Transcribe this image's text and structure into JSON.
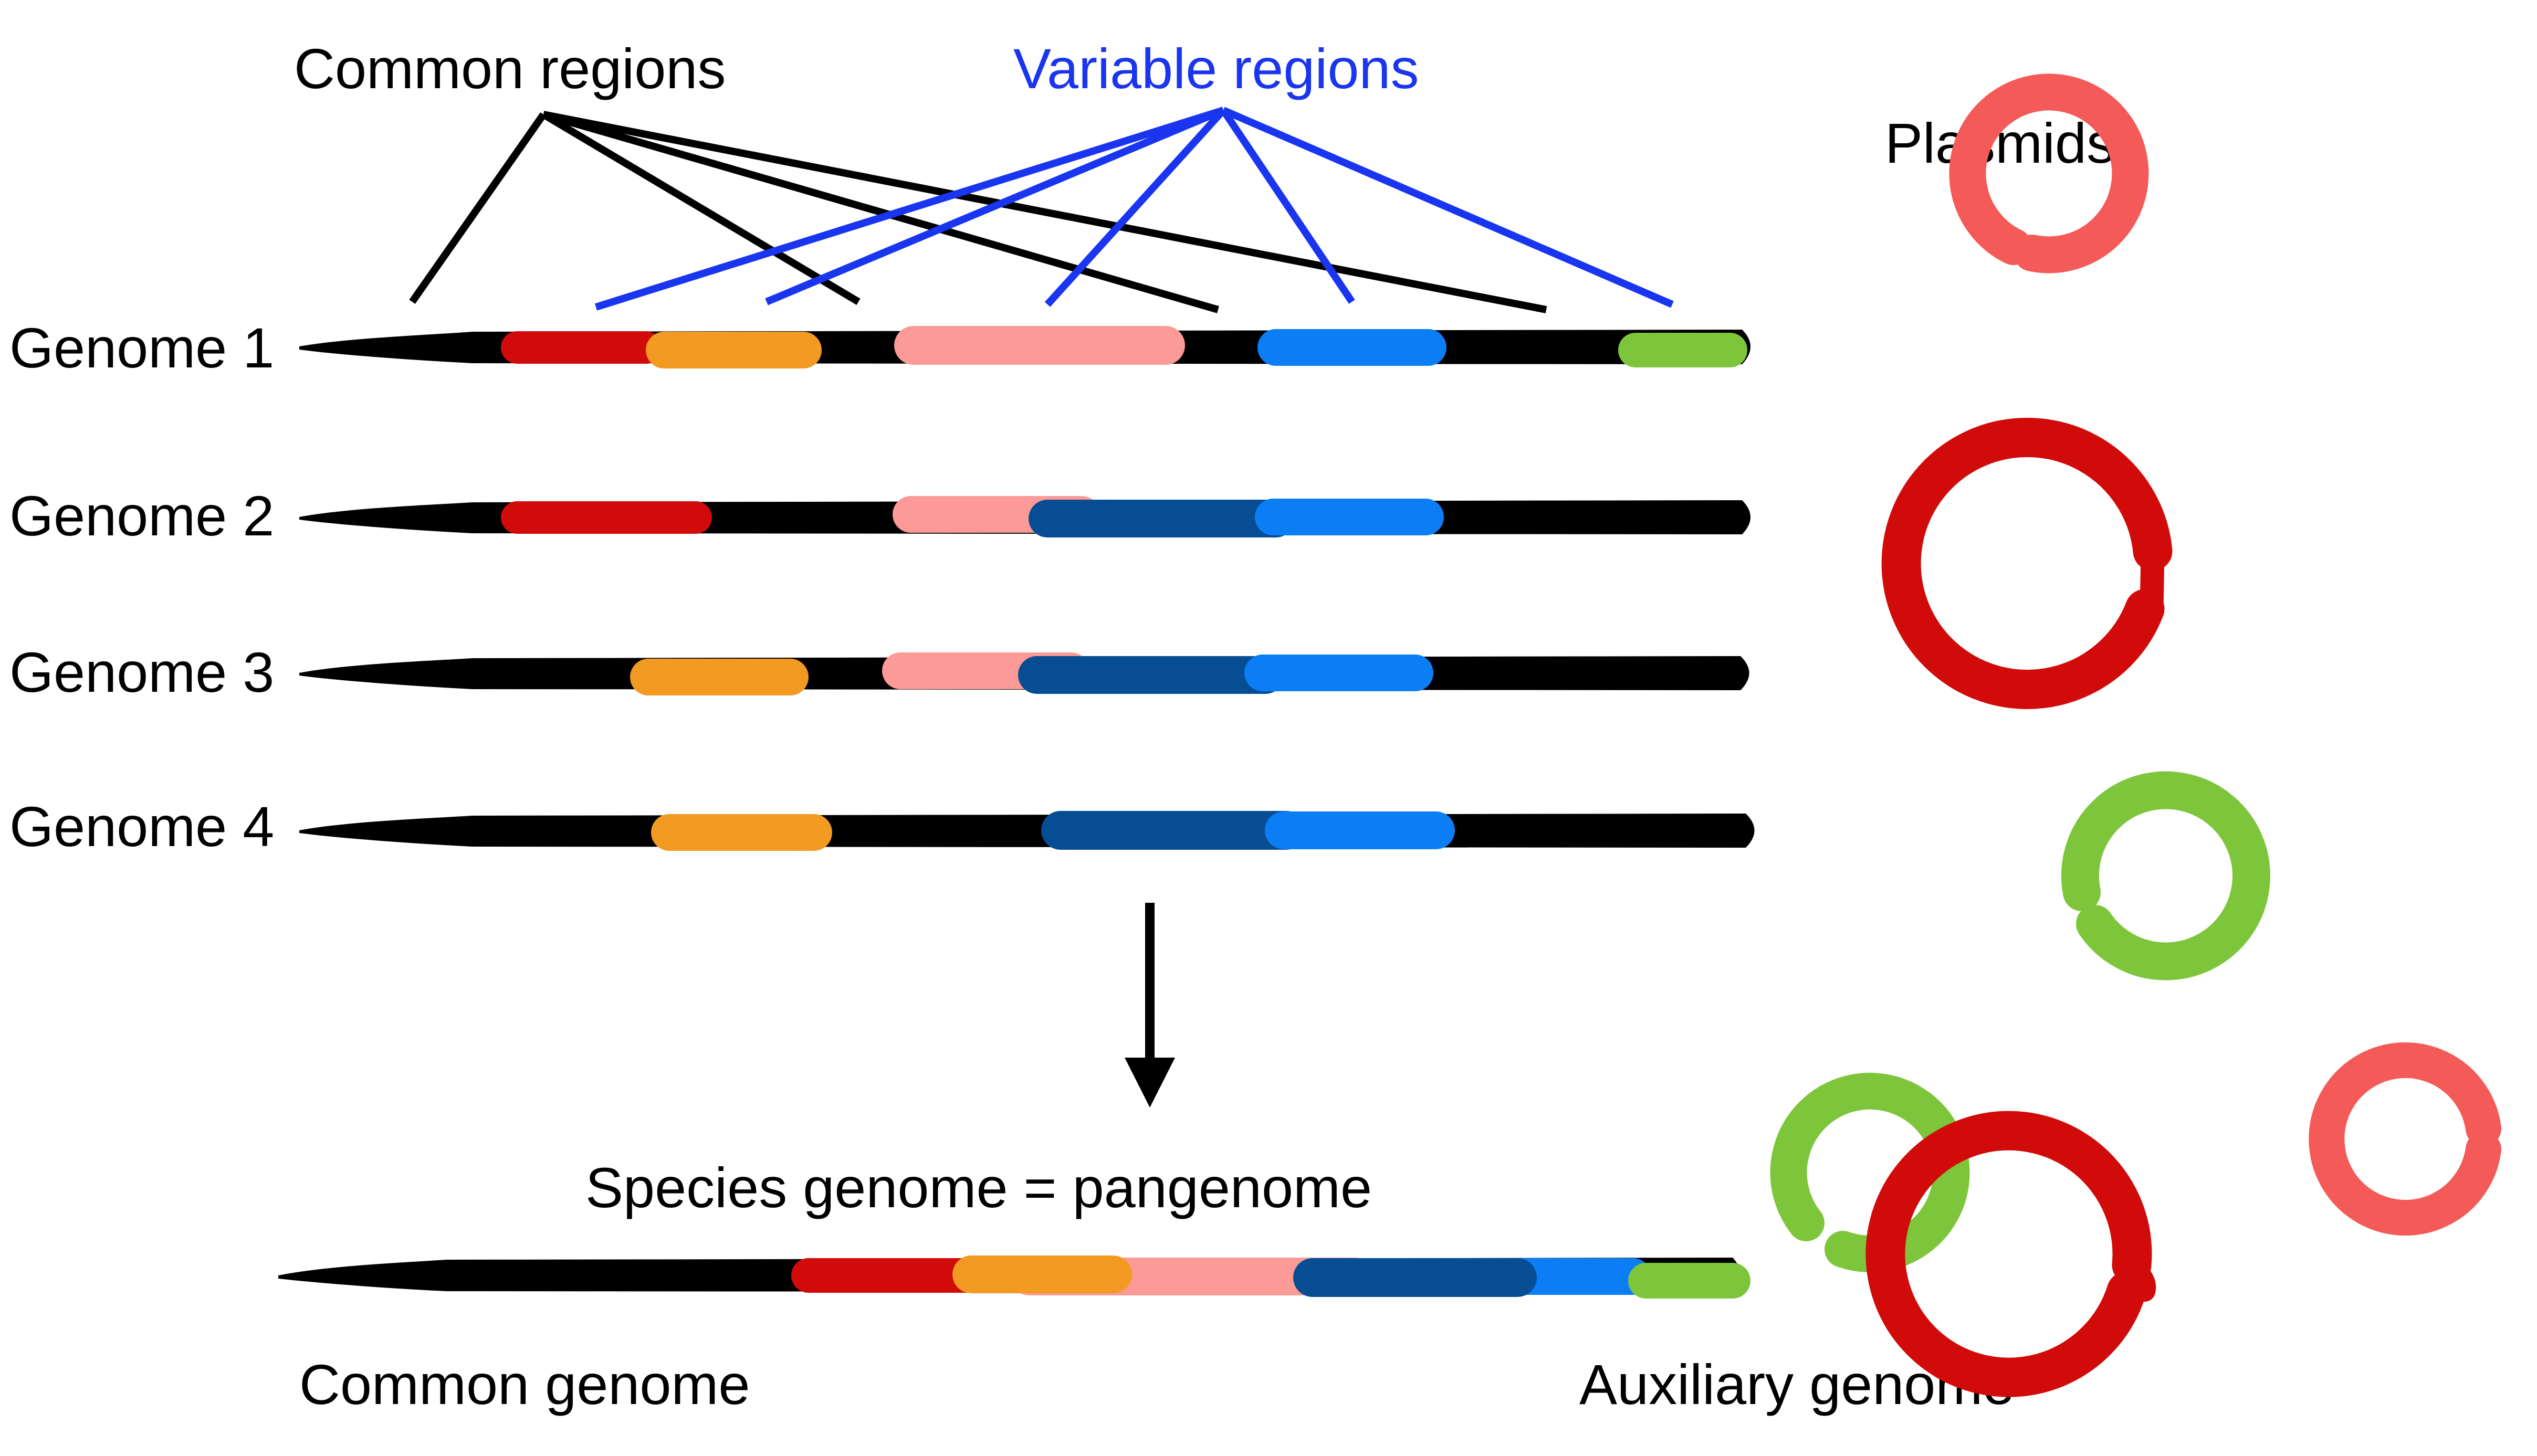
{
  "labels": {
    "common_regions": "Common regions",
    "variable_regions": "Variable regions",
    "plasmids": "Plasmids",
    "genome_1": "Genome 1",
    "genome_2": "Genome 2",
    "genome_3": "Genome 3",
    "genome_4": "Genome 4",
    "pangenome": "Species genome = pangenome",
    "common_genome": "Common genome",
    "auxiliary_genome": "Auxiliary genome"
  },
  "colors": {
    "chromosome": "#000000",
    "variable_label": "#1a35f0",
    "red": "#d10a0a",
    "orange": "#f29a22",
    "pink": "#fb9a96",
    "dark_blue": "#064d94",
    "light_blue": "#0b7df5",
    "green": "#7dc63c",
    "coral": "#f45a57"
  },
  "genomes": [
    {
      "name": "Genome 1",
      "regions": [
        "red",
        "orange",
        "pink",
        "light_blue",
        "green"
      ]
    },
    {
      "name": "Genome 2",
      "regions": [
        "red",
        "pink",
        "dark_blue",
        "light_blue"
      ]
    },
    {
      "name": "Genome 3",
      "regions": [
        "orange",
        "pink",
        "dark_blue",
        "light_blue"
      ]
    },
    {
      "name": "Genome 4",
      "regions": [
        "orange",
        "dark_blue",
        "light_blue"
      ]
    }
  ],
  "plasmids": {
    "column": [
      "coral",
      "red",
      "green"
    ],
    "auxiliary": [
      "green",
      "red",
      "coral"
    ]
  }
}
